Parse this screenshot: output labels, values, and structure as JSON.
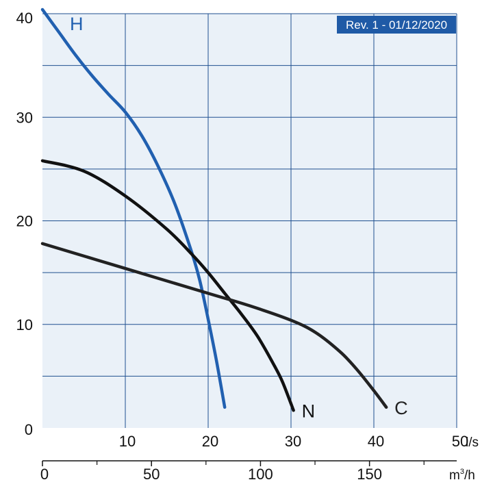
{
  "chart_data": {
    "type": "line",
    "x_unit": "l/s",
    "x2_unit_base": "m",
    "x2_unit_sup": "3",
    "x2_unit_tail": "/h",
    "badge": "Rev. 1 - 01/12/2020",
    "xlim": [
      0,
      50
    ],
    "ylim": [
      0,
      40
    ],
    "x_ticks": [
      10,
      20,
      30,
      40,
      50
    ],
    "y_ticks": [
      0,
      10,
      20,
      30,
      40
    ],
    "x2_ticks": [
      0,
      50,
      100,
      150
    ],
    "x2_minor_ticks": [
      25,
      75,
      125,
      175
    ],
    "x2_lim": [
      0,
      190
    ],
    "grid": true,
    "colors": {
      "background": "#eaf1f8",
      "grid": "#1f4f8f",
      "curve_H": "#2160b0",
      "curve_N": "#111111",
      "curve_C": "#222222",
      "badge": "#1f5aa6"
    },
    "series": [
      {
        "name": "H",
        "color": "#2160b0",
        "points": [
          [
            0,
            40.4
          ],
          [
            2,
            38.2
          ],
          [
            4,
            36.0
          ],
          [
            6,
            34.0
          ],
          [
            8,
            32.2
          ],
          [
            10,
            30.5
          ],
          [
            12,
            28.2
          ],
          [
            14,
            25.2
          ],
          [
            16,
            21.6
          ],
          [
            18,
            17.0
          ],
          [
            19,
            14.2
          ],
          [
            20,
            10.5
          ],
          [
            21,
            6.5
          ],
          [
            22,
            2.0
          ]
        ]
      },
      {
        "name": "N",
        "color": "#111111",
        "points": [
          [
            0,
            25.8
          ],
          [
            5,
            24.8
          ],
          [
            10,
            22.4
          ],
          [
            15,
            19.2
          ],
          [
            18,
            16.8
          ],
          [
            20,
            15.0
          ],
          [
            22,
            13.0
          ],
          [
            24,
            11.0
          ],
          [
            26,
            8.8
          ],
          [
            28,
            6.0
          ],
          [
            29,
            4.4
          ],
          [
            30.3,
            1.7
          ]
        ]
      },
      {
        "name": "C",
        "color": "#222222",
        "points": [
          [
            0,
            17.8
          ],
          [
            10,
            15.4
          ],
          [
            20,
            13.0
          ],
          [
            25,
            11.8
          ],
          [
            30,
            10.4
          ],
          [
            33,
            9.2
          ],
          [
            36,
            7.3
          ],
          [
            38,
            5.6
          ],
          [
            40,
            3.6
          ],
          [
            41.5,
            2.0
          ]
        ]
      }
    ]
  }
}
